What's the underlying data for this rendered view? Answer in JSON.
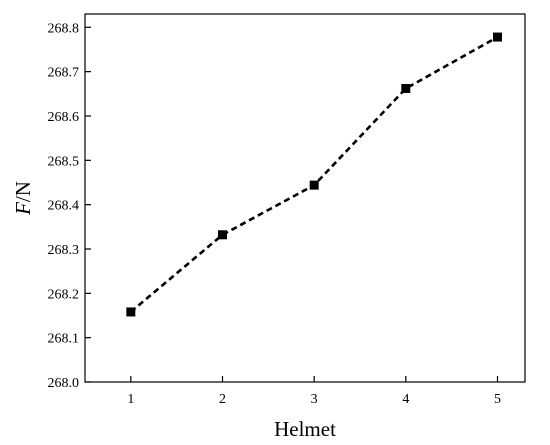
{
  "chart_data": {
    "type": "line",
    "title": "",
    "xlabel": "Helmet",
    "ylabel_italic": "F",
    "ylabel_unit": "/N",
    "x": [
      1,
      2,
      3,
      4,
      5
    ],
    "xticks": [
      "1",
      "2",
      "3",
      "4",
      "5"
    ],
    "xlim": [
      0.5,
      5.3
    ],
    "ylim": [
      268.0,
      268.83
    ],
    "yticks": [
      "268.0",
      "268.1",
      "268.2",
      "268.3",
      "268.4",
      "268.5",
      "268.6",
      "268.7",
      "268.8"
    ],
    "series": [
      {
        "values": [
          268.158,
          268.332,
          268.444,
          268.662,
          268.778
        ],
        "line_style": "dashed",
        "marker": "square",
        "color": "#000000"
      }
    ],
    "grid": false,
    "legend": "none"
  }
}
